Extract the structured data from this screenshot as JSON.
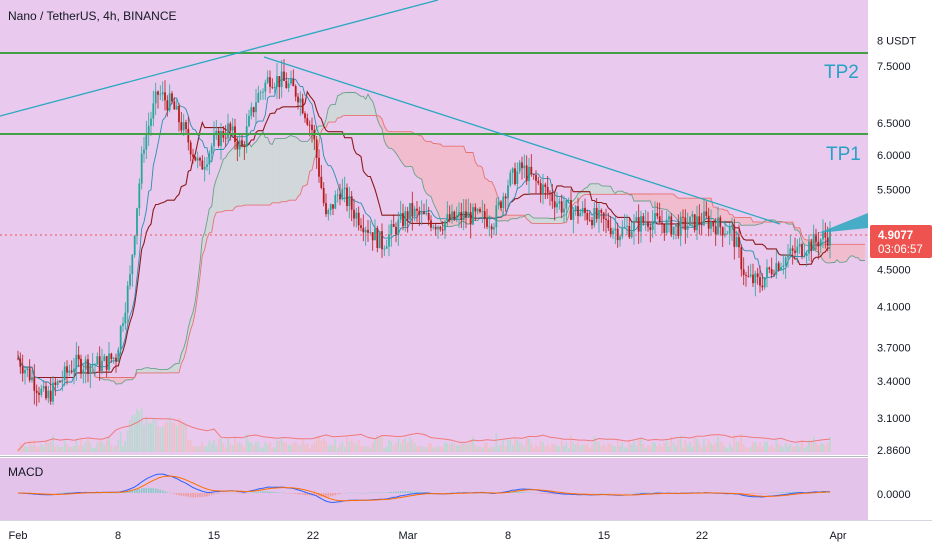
{
  "header": {
    "title": "Nano / TetherUS, 4h, BINANCE"
  },
  "price_axis": {
    "unit_label": "8 USDT"
  },
  "annotations": {
    "tp1": "TP1",
    "tp2": "TP2"
  },
  "current_price": {
    "value": "4.9077",
    "countdown": "03:06:57"
  },
  "macd_panel": {
    "label": "MACD",
    "axis_label": "0.0000"
  },
  "colors": {
    "background": "#ffffff",
    "main_tint": "#e9c9ee",
    "macd_tint": "#e3c3ea",
    "axis_text": "#131722",
    "level_line": "#43a047",
    "trendline": "#2aa8bf",
    "up_candle": "#26a69a",
    "down_candle": "#b71c1c",
    "price_label_bg": "#ef5350",
    "cloud_fill_up": "#c8dcd3",
    "cloud_fill_down": "#f3b7c2",
    "macd_line": "#2962ff",
    "signal_line": "#ff6d00",
    "tp_label": "#26a2c4"
  },
  "chart_data": [
    {
      "type": "candlestick",
      "title": "Nano / TetherUS, 4h, BINANCE",
      "x_axis": {
        "tick_labels": [
          "Feb",
          "8",
          "15",
          "22",
          "Mar",
          "8",
          "15",
          "22",
          "Apr"
        ]
      },
      "y_axis": {
        "scale": "log",
        "tick_labels": [
          "8 USDT",
          "7.5000",
          "6.5000",
          "6.0000",
          "5.5000",
          "4.5000",
          "4.1000",
          "3.7000",
          "3.4000",
          "3.1000",
          "2.8600"
        ],
        "range": [
          2.86,
          8.0
        ]
      },
      "horizontal_levels": [
        {
          "label": "TP2",
          "value": 7.7
        },
        {
          "label": "TP1",
          "value": 6.35
        }
      ],
      "last_price": 4.9077,
      "close_path": [
        {
          "x": "Feb 1",
          "y": 3.6
        },
        {
          "x": "Feb 3",
          "y": 3.25
        },
        {
          "x": "Feb 5",
          "y": 3.55
        },
        {
          "x": "Feb 7",
          "y": 3.55
        },
        {
          "x": "Feb 8",
          "y": 3.62
        },
        {
          "x": "Feb 9",
          "y": 4.4
        },
        {
          "x": "Feb 10",
          "y": 6.2
        },
        {
          "x": "Feb 11",
          "y": 7.0
        },
        {
          "x": "Feb 12",
          "y": 6.8
        },
        {
          "x": "Feb 13",
          "y": 6.3
        },
        {
          "x": "Feb 14",
          "y": 5.8
        },
        {
          "x": "Feb 15",
          "y": 6.2
        },
        {
          "x": "Feb 16",
          "y": 6.4
        },
        {
          "x": "Feb 17",
          "y": 6.1
        },
        {
          "x": "Feb 18",
          "y": 6.9
        },
        {
          "x": "Feb 19",
          "y": 7.3
        },
        {
          "x": "Feb 20",
          "y": 7.2
        },
        {
          "x": "Feb 21",
          "y": 7.0
        },
        {
          "x": "Feb 22",
          "y": 6.4
        },
        {
          "x": "Feb 23",
          "y": 5.1
        },
        {
          "x": "Feb 24",
          "y": 5.5
        },
        {
          "x": "Feb 25",
          "y": 5.2
        },
        {
          "x": "Feb 26",
          "y": 5.0
        },
        {
          "x": "Feb 27",
          "y": 4.8
        },
        {
          "x": "Mar 1",
          "y": 5.2
        },
        {
          "x": "Mar 3",
          "y": 5.05
        },
        {
          "x": "Mar 5",
          "y": 5.15
        },
        {
          "x": "Mar 7",
          "y": 5.1
        },
        {
          "x": "Mar 8",
          "y": 5.6
        },
        {
          "x": "Mar 9",
          "y": 5.8
        },
        {
          "x": "Mar 10",
          "y": 5.6
        },
        {
          "x": "Mar 12",
          "y": 5.25
        },
        {
          "x": "Mar 14",
          "y": 5.15
        },
        {
          "x": "Mar 16",
          "y": 4.95
        },
        {
          "x": "Mar 18",
          "y": 5.1
        },
        {
          "x": "Mar 20",
          "y": 5.0
        },
        {
          "x": "Mar 22",
          "y": 5.1
        },
        {
          "x": "Mar 24",
          "y": 4.95
        },
        {
          "x": "Mar 25",
          "y": 4.4
        },
        {
          "x": "Mar 26",
          "y": 4.35
        },
        {
          "x": "Mar 27",
          "y": 4.55
        },
        {
          "x": "Mar 29",
          "y": 4.75
        },
        {
          "x": "Mar 31",
          "y": 4.91
        }
      ],
      "grid": false
    },
    {
      "type": "line",
      "title": "MACD",
      "y_axis": {
        "tick_labels": [
          "0.0000"
        ]
      },
      "grid": false
    }
  ]
}
